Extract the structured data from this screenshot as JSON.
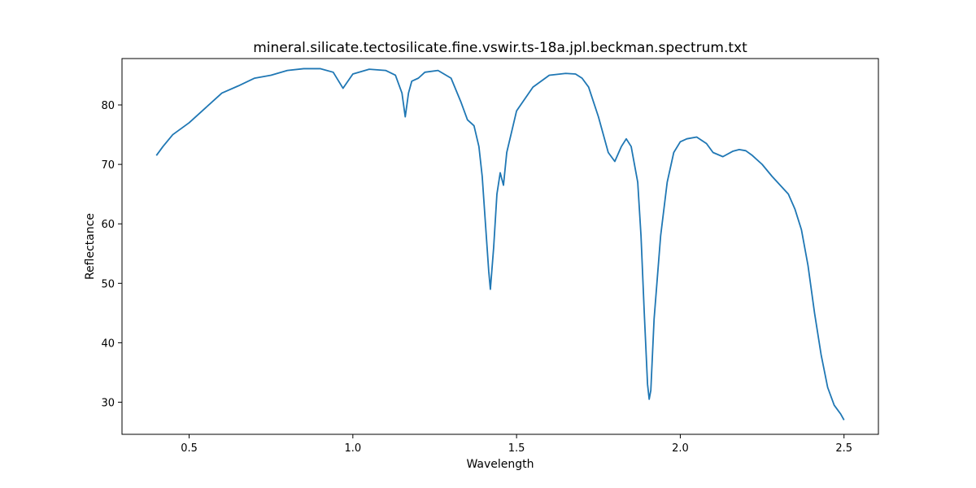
{
  "chart_data": {
    "type": "line",
    "title": "mineral.silicate.tectosilicate.fine.vswir.ts-18a.jpl.beckman.spectrum.txt",
    "xlabel": "Wavelength",
    "ylabel": "Reflectance",
    "xlim": [
      0.295,
      2.605
    ],
    "ylim": [
      24.6,
      87.8
    ],
    "xticks": [
      0.5,
      1.0,
      1.5,
      2.0,
      2.5
    ],
    "xtick_labels": [
      "0.5",
      "1.0",
      "1.5",
      "2.0",
      "2.5"
    ],
    "yticks": [
      30,
      40,
      50,
      60,
      70,
      80
    ],
    "ytick_labels": [
      "30",
      "40",
      "50",
      "60",
      "70",
      "80"
    ],
    "grid": false,
    "legend": "none",
    "series": [
      {
        "color": "#1f77b4",
        "x": [
          0.4,
          0.42,
          0.45,
          0.5,
          0.55,
          0.6,
          0.65,
          0.7,
          0.75,
          0.8,
          0.85,
          0.9,
          0.94,
          0.97,
          1.0,
          1.05,
          1.1,
          1.13,
          1.15,
          1.16,
          1.17,
          1.18,
          1.2,
          1.22,
          1.26,
          1.3,
          1.33,
          1.35,
          1.37,
          1.385,
          1.395,
          1.405,
          1.415,
          1.42,
          1.43,
          1.44,
          1.45,
          1.46,
          1.47,
          1.5,
          1.55,
          1.6,
          1.65,
          1.68,
          1.7,
          1.72,
          1.75,
          1.78,
          1.8,
          1.82,
          1.835,
          1.85,
          1.87,
          1.88,
          1.89,
          1.9,
          1.905,
          1.91,
          1.92,
          1.94,
          1.96,
          1.98,
          2.0,
          2.02,
          2.05,
          2.08,
          2.1,
          2.13,
          2.16,
          2.18,
          2.2,
          2.22,
          2.25,
          2.28,
          2.3,
          2.33,
          2.35,
          2.37,
          2.39,
          2.41,
          2.43,
          2.45,
          2.47,
          2.49,
          2.5
        ],
        "y": [
          71.5,
          73.0,
          75.0,
          77.0,
          79.5,
          82.0,
          83.2,
          84.5,
          85.0,
          85.8,
          86.1,
          86.1,
          85.5,
          82.8,
          85.2,
          86.0,
          85.8,
          85.0,
          82.0,
          78.0,
          82.0,
          84.0,
          84.5,
          85.5,
          85.8,
          84.5,
          80.5,
          77.5,
          76.5,
          73.0,
          68.0,
          60.0,
          52.0,
          49.0,
          56.0,
          65.0,
          68.6,
          66.5,
          72.0,
          79.0,
          83.0,
          85.0,
          85.3,
          85.2,
          84.5,
          83.0,
          78.0,
          72.0,
          70.5,
          73.0,
          74.3,
          73.0,
          67.0,
          58.0,
          45.0,
          33.0,
          30.5,
          32.0,
          44.0,
          58.0,
          67.0,
          72.0,
          73.8,
          74.3,
          74.6,
          73.5,
          72.0,
          71.3,
          72.2,
          72.5,
          72.3,
          71.5,
          70.0,
          68.0,
          66.8,
          65.0,
          62.5,
          59.0,
          53.0,
          45.0,
          38.0,
          32.5,
          29.5,
          28.0,
          27.0
        ]
      }
    ]
  }
}
